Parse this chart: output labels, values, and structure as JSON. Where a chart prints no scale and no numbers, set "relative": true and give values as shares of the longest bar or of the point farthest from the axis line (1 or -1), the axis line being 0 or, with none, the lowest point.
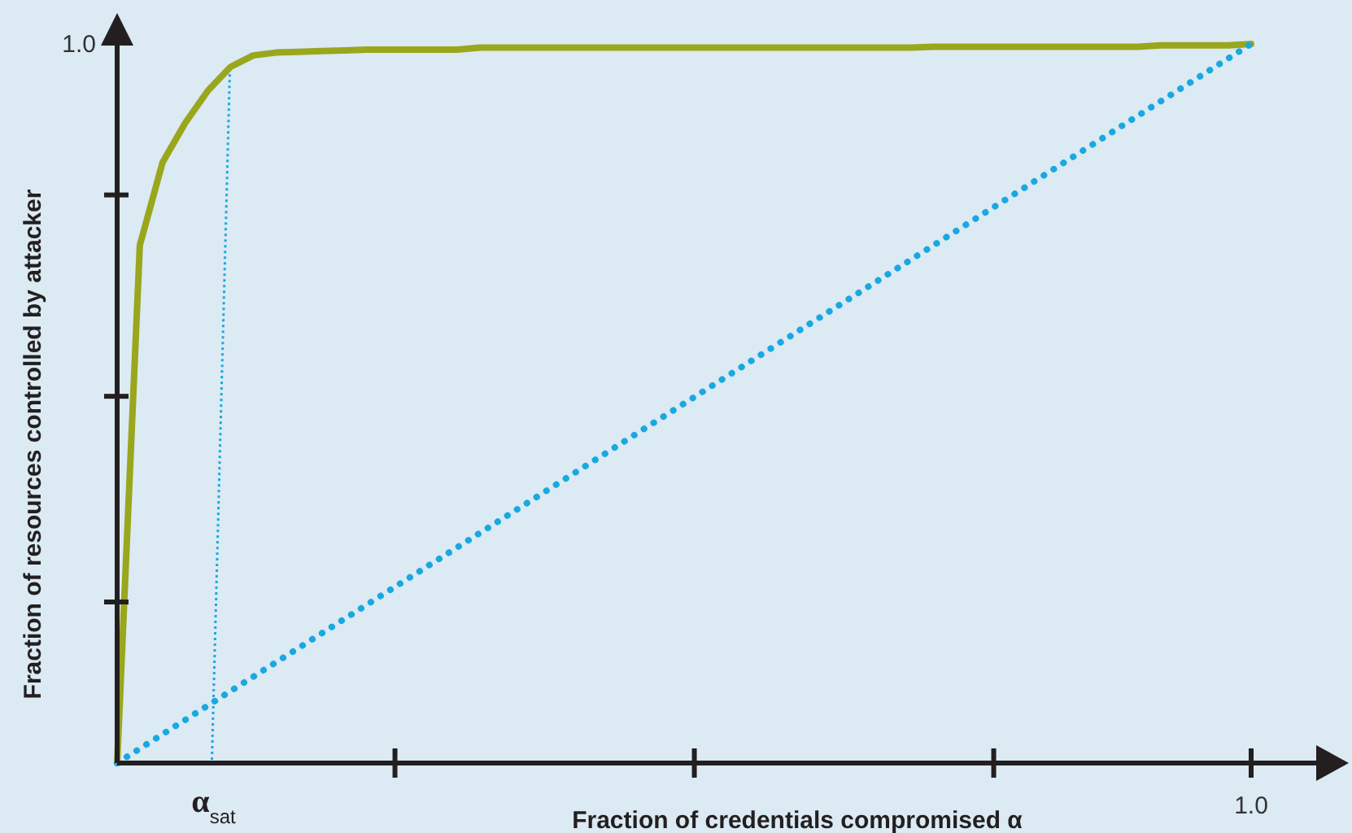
{
  "chart_data": {
    "type": "line",
    "relative": true,
    "xlabel": "Fraction of credentials compromised α",
    "ylabel": "Fraction of resources controlled by attacker",
    "categories": [
      null,
      null,
      null,
      null,
      null,
      null,
      null,
      null,
      null,
      null,
      null,
      null,
      null,
      null,
      null,
      null,
      null,
      null,
      null,
      null,
      null,
      null,
      null,
      null,
      null,
      null,
      null,
      null,
      null,
      null,
      null,
      null,
      null,
      null,
      null,
      null,
      null,
      null,
      null,
      null,
      null,
      null,
      null,
      null,
      null,
      null,
      null,
      null,
      null,
      null,
      null
    ],
    "series": [
      {
        "color": "#9aa61c",
        "line_style": "solid",
        "values": [
          0,
          0.72,
          0.835,
          0.89,
          0.935,
          0.968,
          0.984,
          0.988,
          0.989,
          0.99,
          0.991,
          0.992,
          0.992,
          0.992,
          0.992,
          0.992,
          0.995,
          0.995,
          0.995,
          0.995,
          0.995,
          0.995,
          0.995,
          0.995,
          0.995,
          0.995,
          0.995,
          0.995,
          0.995,
          0.995,
          0.995,
          0.995,
          0.995,
          0.995,
          0.995,
          0.995,
          0.996,
          0.996,
          0.996,
          0.996,
          0.996,
          0.996,
          0.996,
          0.996,
          0.996,
          0.996,
          0.998,
          0.998,
          0.998,
          0.998,
          1
        ]
      },
      {
        "color": "#1aa8e0",
        "line_style": "dotted",
        "values": [
          0,
          0.02,
          0.04,
          0.06,
          0.08,
          0.1,
          0.12,
          0.14,
          0.16,
          0.18,
          0.2,
          0.22,
          0.24,
          0.26,
          0.28,
          0.3,
          0.32,
          0.34,
          0.36,
          0.38,
          0.4,
          0.42,
          0.44,
          0.46,
          0.48,
          0.5,
          0.52,
          0.54,
          0.56,
          0.58,
          0.6,
          0.62,
          0.64,
          0.66,
          0.68,
          0.7,
          0.72,
          0.74,
          0.76,
          0.78,
          0.8,
          0.82,
          0.84,
          0.86,
          0.88,
          0.9,
          0.92,
          0.94,
          0.96,
          0.98,
          1
        ]
      }
    ],
    "annotations": [
      "α$_{sat}$",
      "1.0",
      "1.0"
    ]
  }
}
